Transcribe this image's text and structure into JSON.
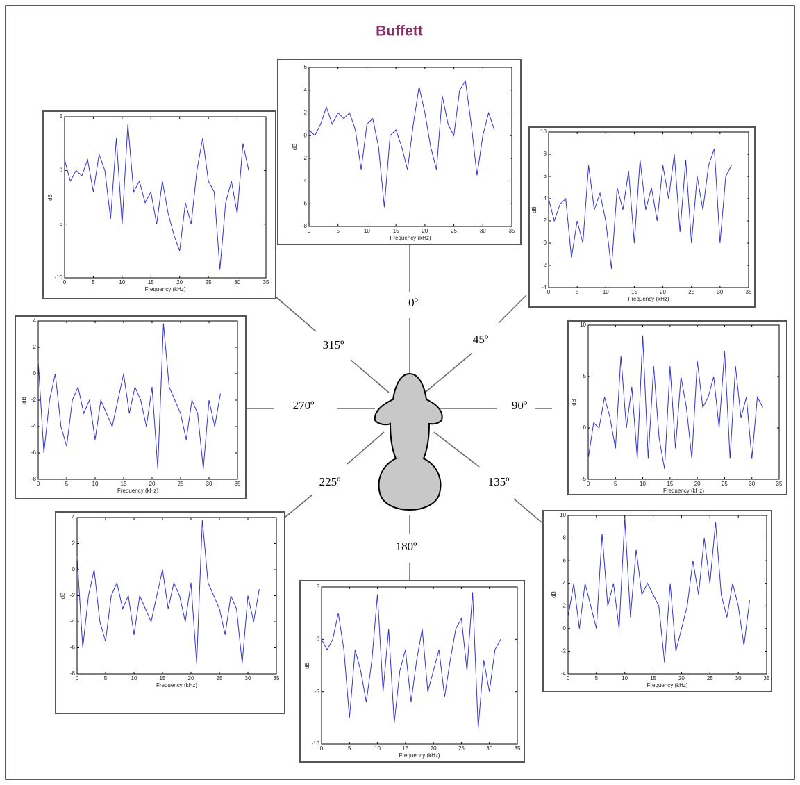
{
  "title": "Buffett",
  "directions": [
    "0º",
    "45º",
    "90º",
    "135º",
    "180º",
    "225º",
    "270º",
    "315º"
  ],
  "chart_data": [
    {
      "type": "line",
      "xlabel": "Frequency (kHz)",
      "ylabel": "dB",
      "color": "#3535c8",
      "xlim": [
        0,
        35
      ],
      "xticks": [
        0,
        5,
        10,
        15,
        20,
        25,
        30,
        35
      ],
      "ylim": [
        -8,
        6
      ],
      "yticks": [
        -8,
        -6,
        -4,
        -2,
        0,
        2,
        4,
        6
      ],
      "x": [
        0,
        1,
        2,
        3,
        4,
        5,
        6,
        7,
        8,
        9,
        10,
        11,
        12,
        13,
        14,
        15,
        16,
        17,
        18,
        19,
        20,
        21,
        22,
        23,
        24,
        25,
        26,
        27,
        28,
        29,
        30,
        31,
        32
      ],
      "values": [
        0.5,
        0,
        1,
        2.5,
        1,
        2,
        1.5,
        2,
        0.5,
        -3,
        1,
        1.5,
        -1,
        -6.3,
        0,
        0.5,
        -1,
        -3,
        1,
        4.3,
        2,
        -1,
        -3,
        3.5,
        1,
        0,
        4,
        4.8,
        1,
        -3.5,
        0,
        2,
        0.5
      ]
    },
    {
      "type": "line",
      "xlabel": "Frequency (kHz)",
      "ylabel": "dB",
      "color": "#3535c8",
      "xlim": [
        0,
        35
      ],
      "xticks": [
        0,
        5,
        10,
        15,
        20,
        25,
        30,
        35
      ],
      "ylim": [
        -4,
        10
      ],
      "yticks": [
        -4,
        -2,
        0,
        2,
        4,
        6,
        8,
        10
      ],
      "x": [
        0,
        1,
        2,
        3,
        4,
        5,
        6,
        7,
        8,
        9,
        10,
        11,
        12,
        13,
        14,
        15,
        16,
        17,
        18,
        19,
        20,
        21,
        22,
        23,
        24,
        25,
        26,
        27,
        28,
        29,
        30,
        31,
        32
      ],
      "values": [
        4,
        2,
        3.5,
        4,
        -1.3,
        2,
        0,
        7,
        3,
        4.5,
        2,
        -2.3,
        5,
        3,
        6.5,
        0,
        7.5,
        3,
        5,
        2,
        7,
        4,
        8,
        1,
        7.5,
        0,
        6,
        3,
        7,
        8.5,
        0,
        6,
        7
      ]
    },
    {
      "type": "line",
      "xlabel": "Frequency (kHz)",
      "ylabel": "dB",
      "color": "#3535c8",
      "xlim": [
        0,
        35
      ],
      "xticks": [
        0,
        5,
        10,
        15,
        20,
        25,
        30,
        35
      ],
      "ylim": [
        -5,
        10
      ],
      "yticks": [
        -5,
        0,
        5,
        10
      ],
      "x": [
        0,
        1,
        2,
        3,
        4,
        5,
        6,
        7,
        8,
        9,
        10,
        11,
        12,
        13,
        14,
        15,
        16,
        17,
        18,
        19,
        20,
        21,
        22,
        23,
        24,
        25,
        26,
        27,
        28,
        29,
        30,
        31,
        32
      ],
      "values": [
        -3,
        0.5,
        0,
        3,
        1,
        -2,
        7,
        0,
        4,
        -3,
        9,
        -3,
        6,
        -1,
        -4,
        6,
        -2,
        5,
        2,
        -3,
        6.5,
        2,
        3,
        5,
        0,
        7.5,
        -3,
        6,
        1,
        3,
        -3,
        3,
        2
      ]
    },
    {
      "type": "line",
      "xlabel": "Frequency (kHz)",
      "ylabel": "dB",
      "color": "#3535c8",
      "xlim": [
        0,
        35
      ],
      "xticks": [
        0,
        5,
        10,
        15,
        20,
        25,
        30,
        35
      ],
      "ylim": [
        -4,
        10
      ],
      "yticks": [
        -4,
        -2,
        0,
        2,
        4,
        6,
        8,
        10
      ],
      "x": [
        0,
        1,
        2,
        3,
        4,
        5,
        6,
        7,
        8,
        9,
        10,
        11,
        12,
        13,
        14,
        15,
        16,
        17,
        18,
        19,
        20,
        21,
        22,
        23,
        24,
        25,
        26,
        27,
        28,
        29,
        30,
        31,
        32
      ],
      "values": [
        1,
        4,
        0,
        4,
        2,
        0,
        8.4,
        2,
        4,
        0,
        9.8,
        1,
        7,
        3,
        4,
        3,
        2,
        -3,
        4,
        -2,
        0,
        2,
        6,
        3,
        8,
        4,
        9.4,
        3,
        1,
        4,
        2,
        -1.5,
        2.5
      ]
    },
    {
      "type": "line",
      "xlabel": "Frequency (kHz)",
      "ylabel": "dB",
      "color": "#3535c8",
      "xlim": [
        0,
        35
      ],
      "xticks": [
        0,
        5,
        10,
        15,
        20,
        25,
        30,
        35
      ],
      "ylim": [
        -10,
        5
      ],
      "yticks": [
        -10,
        -5,
        0,
        5
      ],
      "x": [
        0,
        1,
        2,
        3,
        4,
        5,
        6,
        7,
        8,
        9,
        10,
        11,
        12,
        13,
        14,
        15,
        16,
        17,
        18,
        19,
        20,
        21,
        22,
        23,
        24,
        25,
        26,
        27,
        28,
        29,
        30,
        31,
        32
      ],
      "values": [
        0,
        -1,
        0,
        2.5,
        -1,
        -7.5,
        -1,
        -3,
        -6,
        -2,
        4.3,
        -5,
        1,
        -8,
        -3,
        -1,
        -6,
        -2,
        1,
        -5,
        -3,
        -1,
        -5.5,
        -2,
        1,
        2,
        -3,
        4.5,
        -8.5,
        -2,
        -5,
        -1,
        0
      ]
    },
    {
      "type": "line",
      "xlabel": "Frequency (kHz)",
      "ylabel": "dB",
      "color": "#3535c8",
      "xlim": [
        0,
        35
      ],
      "xticks": [
        0,
        5,
        10,
        15,
        20,
        25,
        30,
        35
      ],
      "ylim": [
        -8,
        4
      ],
      "yticks": [
        -8,
        -6,
        -4,
        -2,
        0,
        2,
        4
      ],
      "x": [
        0,
        1,
        2,
        3,
        4,
        5,
        6,
        7,
        8,
        9,
        10,
        11,
        12,
        13,
        14,
        15,
        16,
        17,
        18,
        19,
        20,
        21,
        22,
        23,
        24,
        25,
        26,
        27,
        28,
        29,
        30,
        31,
        32
      ],
      "values": [
        1,
        -6,
        -2,
        0,
        -4,
        -5.5,
        -2,
        -1,
        -3,
        -2,
        -5,
        -2,
        -3,
        -4,
        -2,
        0,
        -3,
        -1,
        -2,
        -4,
        -1,
        -7.2,
        3.8,
        -1,
        -2,
        -3,
        -5,
        -2,
        -3,
        -7.2,
        -2,
        -4,
        -1.5
      ]
    },
    {
      "type": "line",
      "xlabel": "Frequency (kHz)",
      "ylabel": "dB",
      "color": "#3535c8",
      "xlim": [
        0,
        35
      ],
      "xticks": [
        0,
        5,
        10,
        15,
        20,
        25,
        30,
        35
      ],
      "ylim": [
        -8,
        4
      ],
      "yticks": [
        -8,
        -6,
        -4,
        -2,
        0,
        2,
        4
      ],
      "x": [
        0,
        1,
        2,
        3,
        4,
        5,
        6,
        7,
        8,
        9,
        10,
        11,
        12,
        13,
        14,
        15,
        16,
        17,
        18,
        19,
        20,
        21,
        22,
        23,
        24,
        25,
        26,
        27,
        28,
        29,
        30,
        31,
        32
      ],
      "values": [
        1,
        -6,
        -2,
        0,
        -4,
        -5.5,
        -2,
        -1,
        -3,
        -2,
        -5,
        -2,
        -3,
        -4,
        -2,
        0,
        -3,
        -1,
        -2,
        -4,
        -1,
        -7.2,
        3.8,
        -1,
        -2,
        -3,
        -5,
        -2,
        -3,
        -7.2,
        -2,
        -4,
        -1.5
      ]
    },
    {
      "type": "line",
      "xlabel": "Frequency (kHz)",
      "ylabel": "dB",
      "color": "#3535c8",
      "xlim": [
        0,
        35
      ],
      "xticks": [
        0,
        5,
        10,
        15,
        20,
        25,
        30,
        35
      ],
      "ylim": [
        -10,
        5
      ],
      "yticks": [
        -10,
        -5,
        0,
        5
      ],
      "x": [
        0,
        1,
        2,
        3,
        4,
        5,
        6,
        7,
        8,
        9,
        10,
        11,
        12,
        13,
        14,
        15,
        16,
        17,
        18,
        19,
        20,
        21,
        22,
        23,
        24,
        25,
        26,
        27,
        28,
        29,
        30,
        31,
        32
      ],
      "values": [
        1,
        -1,
        0,
        -0.5,
        1,
        -2,
        1.5,
        0,
        -4.5,
        3,
        -5,
        4.3,
        -2,
        -1,
        -3,
        -2,
        -5,
        -1,
        -4,
        -6,
        -7.5,
        -3,
        -5,
        0,
        3,
        -1,
        -2,
        -9.2,
        -3,
        -1,
        -4,
        2.5,
        0
      ]
    }
  ]
}
